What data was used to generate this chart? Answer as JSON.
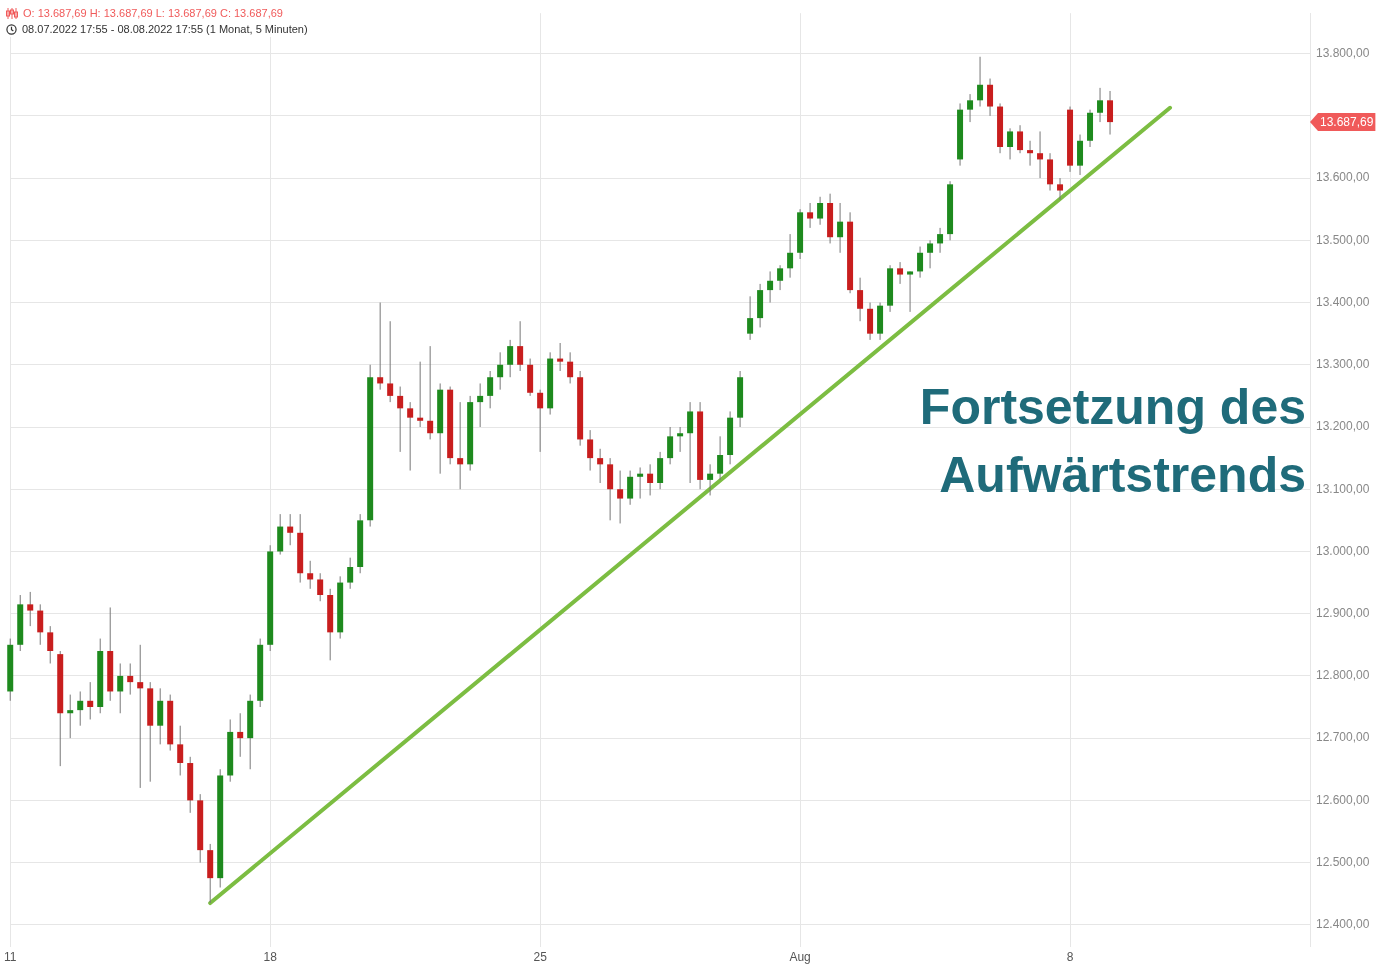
{
  "chart_data": {
    "type": "candlestick",
    "title": "O: 13.687,69  H: 13.687,69  L: 13.687,69  C: 13.687,69",
    "subtitle": "08.07.2022 17:55 - 08.08.2022 17:55   (1 Monat, 5 Minuten)",
    "annotations": [
      "Fortsetzung des Aufwärtstrends",
      "13.687,69"
    ],
    "categories": [
      "11",
      null,
      null,
      null,
      null,
      null,
      null,
      null,
      null,
      null,
      null,
      null,
      null,
      null,
      null,
      null,
      null,
      null,
      null,
      null,
      null,
      null,
      null,
      null,
      null,
      null,
      "18",
      null,
      null,
      null,
      null,
      null,
      null,
      null,
      null,
      null,
      null,
      null,
      null,
      null,
      null,
      null,
      null,
      null,
      null,
      null,
      null,
      null,
      null,
      null,
      null,
      null,
      null,
      "25",
      null,
      null,
      null,
      null,
      null,
      null,
      null,
      null,
      null,
      null,
      null,
      null,
      null,
      null,
      null,
      null,
      null,
      null,
      null,
      null,
      null,
      null,
      null,
      null,
      null,
      "Aug",
      null,
      null,
      null,
      null,
      null,
      null,
      null,
      null,
      null,
      null,
      null,
      null,
      null,
      null,
      null,
      null,
      null,
      null,
      null,
      null,
      null,
      null,
      null,
      null,
      null,
      null,
      "8",
      null,
      null,
      null,
      null,
      null,
      null,
      null,
      null,
      null,
      null,
      null,
      null,
      null,
      null,
      null,
      null,
      null,
      null,
      null,
      null,
      null,
      null,
      null,
      null
    ],
    "ohlc": [
      [
        12775,
        12860,
        12760,
        12850
      ],
      [
        12850,
        12930,
        12840,
        12915
      ],
      [
        12915,
        12935,
        12880,
        12905
      ],
      [
        12905,
        12915,
        12850,
        12870
      ],
      [
        12870,
        12880,
        12820,
        12840
      ],
      [
        12835,
        12840,
        12655,
        12740
      ],
      [
        12740,
        12770,
        12700,
        12745
      ],
      [
        12745,
        12775,
        12720,
        12760
      ],
      [
        12760,
        12790,
        12730,
        12750
      ],
      [
        12750,
        12860,
        12740,
        12840
      ],
      [
        12840,
        12910,
        12760,
        12775
      ],
      [
        12775,
        12820,
        12740,
        12800
      ],
      [
        12800,
        12820,
        12770,
        12790
      ],
      [
        12790,
        12850,
        12620,
        12780
      ],
      [
        12780,
        12790,
        12630,
        12720
      ],
      [
        12720,
        12780,
        12690,
        12760
      ],
      [
        12760,
        12770,
        12680,
        12690
      ],
      [
        12690,
        12720,
        12640,
        12660
      ],
      [
        12660,
        12670,
        12580,
        12600
      ],
      [
        12600,
        12610,
        12500,
        12520
      ],
      [
        12520,
        12530,
        12435,
        12475
      ],
      [
        12475,
        12650,
        12460,
        12640
      ],
      [
        12640,
        12730,
        12630,
        12710
      ],
      [
        12710,
        12740,
        12670,
        12700
      ],
      [
        12700,
        12770,
        12650,
        12760
      ],
      [
        12760,
        12860,
        12750,
        12850
      ],
      [
        12850,
        13010,
        12840,
        13000
      ],
      [
        13000,
        13060,
        12995,
        13040
      ],
      [
        13040,
        13060,
        13010,
        13030
      ],
      [
        13030,
        13060,
        12950,
        12965
      ],
      [
        12965,
        12985,
        12940,
        12955
      ],
      [
        12955,
        12965,
        12920,
        12930
      ],
      [
        12930,
        12940,
        12825,
        12870
      ],
      [
        12870,
        12960,
        12860,
        12950
      ],
      [
        12950,
        12990,
        12940,
        12975
      ],
      [
        12975,
        13060,
        12965,
        13050
      ],
      [
        13050,
        13300,
        13040,
        13280
      ],
      [
        13280,
        13400,
        13260,
        13270
      ],
      [
        13270,
        13370,
        13240,
        13250
      ],
      [
        13250,
        13265,
        13160,
        13230
      ],
      [
        13230,
        13240,
        13130,
        13215
      ],
      [
        13215,
        13305,
        13200,
        13210
      ],
      [
        13210,
        13330,
        13180,
        13190
      ],
      [
        13190,
        13270,
        13125,
        13260
      ],
      [
        13260,
        13265,
        13140,
        13150
      ],
      [
        13150,
        13240,
        13100,
        13140
      ],
      [
        13140,
        13250,
        13130,
        13240
      ],
      [
        13240,
        13270,
        13200,
        13250
      ],
      [
        13250,
        13290,
        13230,
        13280
      ],
      [
        13280,
        13320,
        13260,
        13300
      ],
      [
        13300,
        13340,
        13280,
        13330
      ],
      [
        13330,
        13370,
        13290,
        13300
      ],
      [
        13300,
        13310,
        13250,
        13255
      ],
      [
        13255,
        13260,
        13160,
        13230
      ],
      [
        13230,
        13320,
        13220,
        13310
      ],
      [
        13310,
        13335,
        13290,
        13305
      ],
      [
        13305,
        13320,
        13270,
        13280
      ],
      [
        13280,
        13290,
        13170,
        13180
      ],
      [
        13180,
        13195,
        13130,
        13150
      ],
      [
        13150,
        13165,
        13110,
        13140
      ],
      [
        13140,
        13150,
        13050,
        13100
      ],
      [
        13100,
        13130,
        13045,
        13085
      ],
      [
        13085,
        13130,
        13075,
        13120
      ],
      [
        13120,
        13135,
        13085,
        13125
      ],
      [
        13125,
        13140,
        13090,
        13110
      ],
      [
        13110,
        13160,
        13100,
        13150
      ],
      [
        13150,
        13200,
        13140,
        13185
      ],
      [
        13185,
        13200,
        13160,
        13190
      ],
      [
        13190,
        13240,
        13110,
        13225
      ],
      [
        13225,
        13240,
        13100,
        13115
      ],
      [
        13115,
        13140,
        13090,
        13125
      ],
      [
        13125,
        13185,
        13115,
        13155
      ],
      [
        13155,
        13225,
        13140,
        13215
      ],
      [
        13215,
        13290,
        13200,
        13280
      ],
      [
        13350,
        13410,
        13340,
        13375
      ],
      [
        13375,
        13430,
        13360,
        13420
      ],
      [
        13420,
        13450,
        13400,
        13435
      ],
      [
        13435,
        13460,
        13420,
        13455
      ],
      [
        13455,
        13510,
        13440,
        13480
      ],
      [
        13480,
        13550,
        13470,
        13545
      ],
      [
        13545,
        13560,
        13520,
        13535
      ],
      [
        13535,
        13570,
        13525,
        13560
      ],
      [
        13560,
        13575,
        13495,
        13505
      ],
      [
        13505,
        13560,
        13480,
        13530
      ],
      [
        13530,
        13545,
        13415,
        13420
      ],
      [
        13420,
        13440,
        13370,
        13390
      ],
      [
        13390,
        13400,
        13340,
        13350
      ],
      [
        13350,
        13400,
        13340,
        13395
      ],
      [
        13395,
        13460,
        13385,
        13455
      ],
      [
        13455,
        13465,
        13430,
        13445
      ],
      [
        13445,
        13450,
        13385,
        13450
      ],
      [
        13450,
        13490,
        13440,
        13480
      ],
      [
        13480,
        13500,
        13455,
        13495
      ],
      [
        13495,
        13520,
        13480,
        13510
      ],
      [
        13510,
        13595,
        13500,
        13590
      ],
      [
        13630,
        13720,
        13620,
        13710
      ],
      [
        13710,
        13735,
        13690,
        13725
      ],
      [
        13725,
        13795,
        13715,
        13750
      ],
      [
        13750,
        13760,
        13700,
        13715
      ],
      [
        13715,
        13720,
        13640,
        13650
      ],
      [
        13650,
        13680,
        13630,
        13675
      ],
      [
        13675,
        13685,
        13640,
        13645
      ],
      [
        13645,
        13660,
        13620,
        13640
      ],
      [
        13640,
        13675,
        13600,
        13630
      ],
      [
        13630,
        13640,
        13580,
        13590
      ],
      [
        13590,
        13600,
        13565,
        13580
      ],
      [
        13710,
        13715,
        13610,
        13620
      ],
      [
        13620,
        13670,
        13605,
        13660
      ],
      [
        13660,
        13710,
        13650,
        13705
      ],
      [
        13705,
        13745,
        13690,
        13725
      ],
      [
        13725,
        13740,
        13670,
        13690
      ],
      null,
      null,
      null,
      null,
      null,
      null,
      null,
      null,
      null,
      null,
      null,
      null,
      null,
      null,
      null,
      null,
      null,
      null,
      null,
      null
    ],
    "series": [
      {
        "type": "line",
        "color": "#7cbd42",
        "values": [
          null,
          null,
          null,
          null,
          null,
          null,
          null,
          null,
          null,
          null,
          null,
          null,
          null,
          null,
          null,
          null,
          null,
          null,
          null,
          null,
          12435,
          null,
          null,
          null,
          null,
          null,
          null,
          null,
          null,
          null,
          null,
          null,
          null,
          null,
          null,
          null,
          null,
          null,
          null,
          null,
          null,
          null,
          null,
          null,
          null,
          null,
          null,
          null,
          null,
          null,
          null,
          null,
          null,
          null,
          null,
          null,
          null,
          null,
          null,
          null,
          null,
          null,
          null,
          null,
          null,
          null,
          null,
          null,
          null,
          null,
          null,
          null,
          null,
          null,
          null,
          null,
          null,
          null,
          null,
          null,
          null,
          null,
          null,
          null,
          null,
          null,
          null,
          null,
          null,
          null,
          null,
          null,
          null,
          null,
          null,
          null,
          null,
          null,
          null,
          null,
          null,
          null,
          null,
          null,
          null,
          null,
          null,
          null,
          null,
          null,
          null,
          null,
          null,
          null,
          null,
          null,
          13713,
          null,
          null,
          null,
          null,
          null,
          null,
          null,
          null,
          null,
          null,
          null,
          null,
          null,
          null
        ]
      }
    ],
    "ylim": [
      12365,
      13865
    ],
    "yticks": [
      {
        "value": 12400,
        "label": "12.400,00"
      },
      {
        "value": 12500,
        "label": "12.500,00"
      },
      {
        "value": 12600,
        "label": "12.600,00"
      },
      {
        "value": 12700,
        "label": "12.700,00"
      },
      {
        "value": 12800,
        "label": "12.800,00"
      },
      {
        "value": 12900,
        "label": "12.900,00"
      },
      {
        "value": 13000,
        "label": "13.000,00"
      },
      {
        "value": 13100,
        "label": "13.100,00"
      },
      {
        "value": 13200,
        "label": "13.200,00"
      },
      {
        "value": 13300,
        "label": "13.300,00"
      },
      {
        "value": 13400,
        "label": "13.400,00"
      },
      {
        "value": 13500,
        "label": "13.500,00"
      },
      {
        "value": 13600,
        "label": "13.600,00"
      },
      {
        "value": 13700,
        "label": null
      },
      {
        "value": 13800,
        "label": "13.800,00"
      }
    ],
    "grid": true,
    "legend": false
  }
}
